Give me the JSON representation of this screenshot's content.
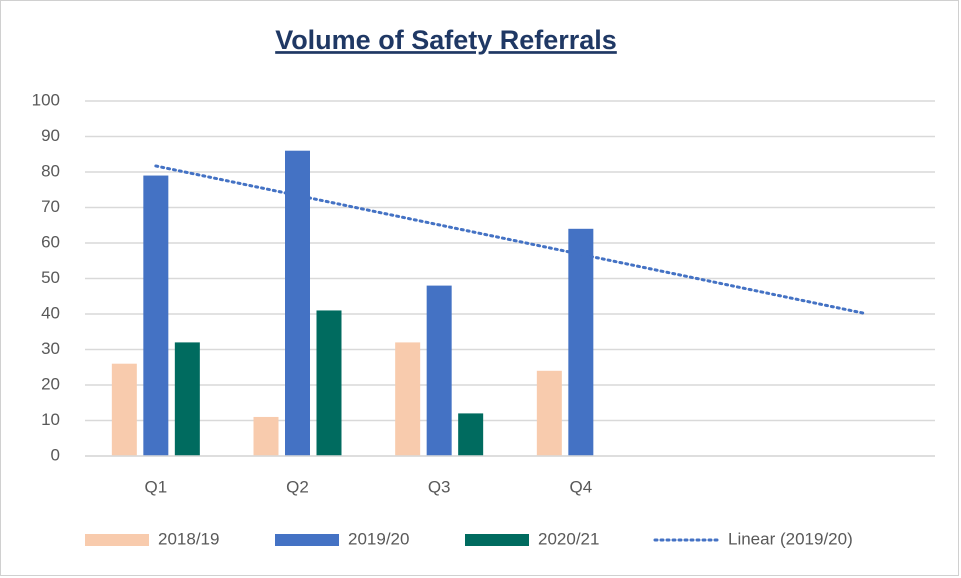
{
  "chart_data": {
    "type": "bar",
    "title": "Volume of Safety Referrals",
    "categories": [
      "Q1",
      "Q2",
      "Q3",
      "Q4",
      null,
      null
    ],
    "series": [
      {
        "name": "2018/19",
        "color": "#f8cbad",
        "values": [
          26,
          11,
          32,
          24,
          null,
          null
        ]
      },
      {
        "name": "2019/20",
        "color": "#4472c4",
        "values": [
          79,
          86,
          48,
          64,
          null,
          null
        ]
      },
      {
        "name": "2020/21",
        "color": "#006b5f",
        "values": [
          32,
          41,
          12,
          null,
          null,
          null
        ]
      },
      {
        "name": "Linear (2019/20)",
        "color": "#4472c4",
        "type": "line",
        "dash": "dotted",
        "values": [
          81.7,
          73.4,
          65.1,
          56.8,
          48.5,
          40.2
        ]
      }
    ],
    "ylim": [
      0,
      100
    ],
    "yticks": [
      0,
      10,
      20,
      30,
      40,
      50,
      60,
      70,
      80,
      90,
      100
    ],
    "grid": true,
    "legend": "bottom"
  }
}
